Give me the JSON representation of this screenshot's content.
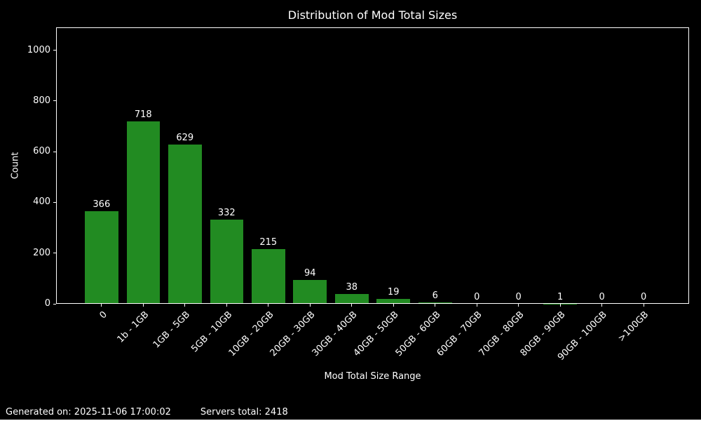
{
  "chart_data": {
    "type": "bar",
    "title": "Distribution of Mod Total Sizes",
    "xlabel": "Mod Total Size Range",
    "ylabel": "Count",
    "categories": [
      "0",
      "1b - 1GB",
      "1GB - 5GB",
      "5GB - 10GB",
      "10GB - 20GB",
      "20GB - 30GB",
      "30GB - 40GB",
      "40GB - 50GB",
      "50GB - 60GB",
      "60GB - 70GB",
      "70GB - 80GB",
      "80GB - 90GB",
      "90GB - 100GB",
      ">100GB"
    ],
    "values": [
      366,
      718,
      629,
      332,
      215,
      94,
      38,
      19,
      6,
      0,
      0,
      1,
      0,
      0
    ],
    "yticks": [
      0,
      200,
      400,
      600,
      800,
      1000
    ],
    "ylim": [
      0,
      1090
    ],
    "grid": false,
    "legend": null,
    "bar_color": "#228B22",
    "background_color": "#000000",
    "text_color": "#ffffff",
    "axis_color": "#ffffff"
  },
  "footer": {
    "generated": "Generated on: 2025-11-06 17:00:02",
    "servers_total": "Servers total: 2418"
  }
}
